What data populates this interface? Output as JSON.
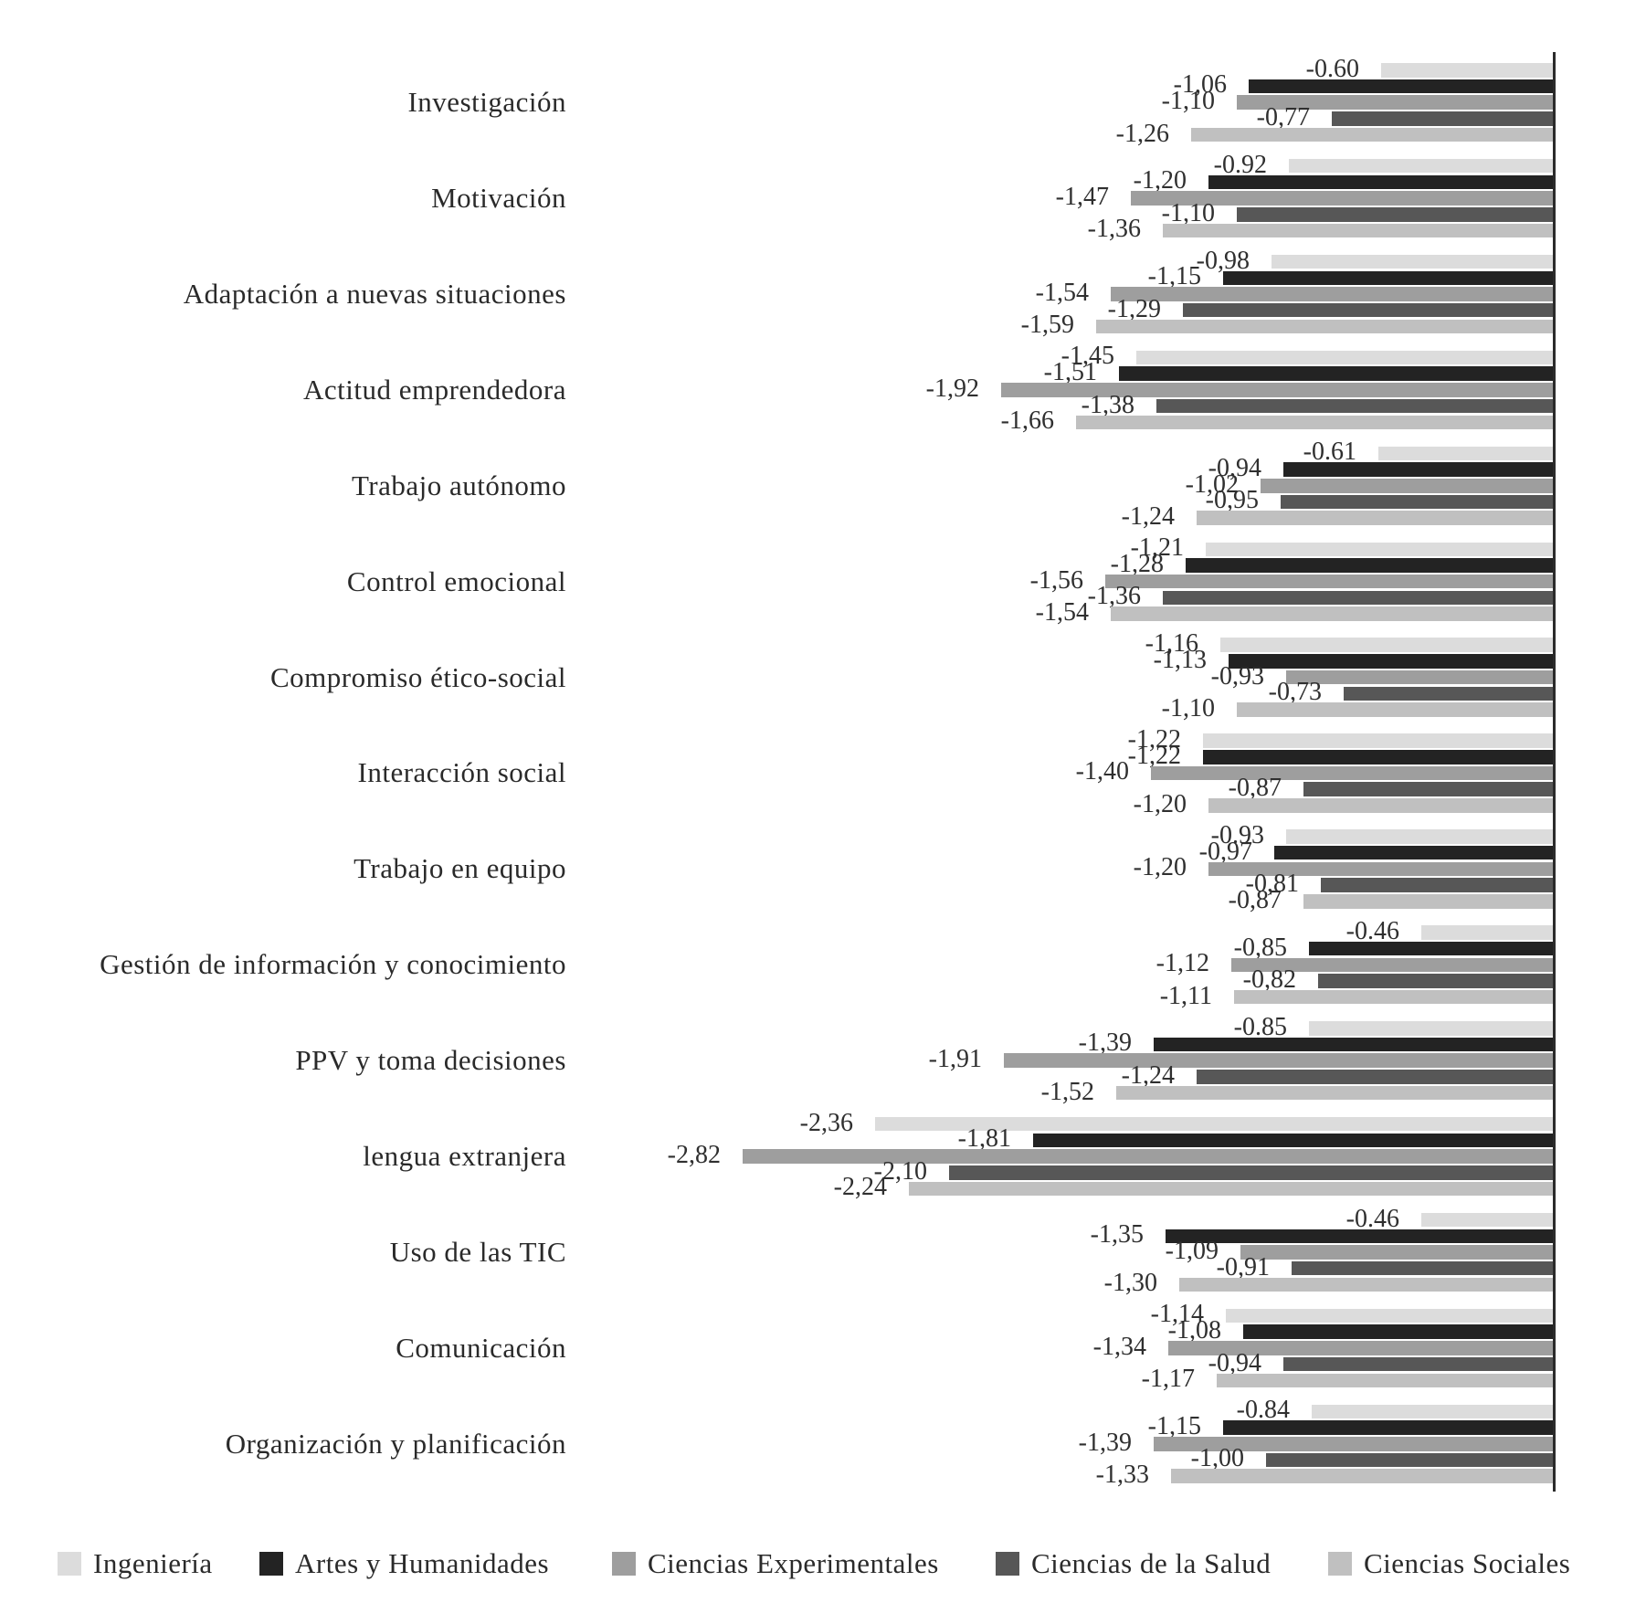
{
  "chart_data": {
    "type": "bar",
    "orientation": "horizontal",
    "title": "",
    "xlabel": "",
    "ylabel": "",
    "xlim": [
      -3,
      0
    ],
    "grid": false,
    "legend_position": "bottom",
    "background": "#ffffff",
    "axis_color": "#2b2b2b",
    "categories": [
      "Investigación",
      "Motivación",
      "Adaptación a nuevas situaciones",
      "Actitud emprendedora",
      "Trabajo autónomo",
      "Control emocional",
      "Compromiso ético-social",
      "Interacción social",
      "Trabajo en equipo",
      "Gestión de información y conocimiento",
      "PPV y toma decisiones",
      "lengua extranjera",
      "Uso de las TIC",
      "Comunicación",
      "Organización y planificación"
    ],
    "series": [
      {
        "name": "Ingeniería",
        "color": "#dcdcdc",
        "values": [
          -0.6,
          -0.92,
          -0.98,
          -1.45,
          -0.61,
          -1.21,
          -1.16,
          -1.22,
          -0.93,
          -0.46,
          -0.85,
          -2.36,
          -0.46,
          -1.14,
          -0.84
        ],
        "labels": [
          "-0.60",
          "-0.92",
          "-0,98",
          "-1,45",
          "-0.61",
          "-1,21",
          "-1,16",
          "-1,22",
          "-0.93",
          "-0.46",
          "-0.85",
          "-2,36",
          "-0.46",
          "-1,14",
          "-0.84"
        ]
      },
      {
        "name": "Artes y Humanidades",
        "color": "#232323",
        "values": [
          -1.06,
          -1.2,
          -1.15,
          -1.51,
          -0.94,
          -1.28,
          -1.13,
          -1.22,
          -0.97,
          -0.85,
          -1.39,
          -1.81,
          -1.35,
          -1.08,
          -1.15
        ],
        "labels": [
          "-1,06",
          "-1,20",
          "-1,15",
          "-1,51",
          "-0,94",
          "-1,28",
          "-1,13",
          "-1,22",
          "-0,97",
          "-0,85",
          "-1,39",
          "-1,81",
          "-1,35",
          "-1,08",
          "-1,15"
        ]
      },
      {
        "name": "Ciencias Experimentales",
        "color": "#9e9e9e",
        "values": [
          -1.1,
          -1.47,
          -1.54,
          -1.92,
          -1.02,
          -1.56,
          -0.93,
          -1.4,
          -1.2,
          -1.12,
          -1.91,
          -2.82,
          -1.09,
          -1.34,
          -1.39
        ],
        "labels": [
          "-1,10",
          "-1,47",
          "-1,54",
          "-1,92",
          "-1,02",
          "-1,56",
          "-0,93",
          "-1,40",
          "-1,20",
          "-1,12",
          "-1,91",
          "-2,82",
          "-1,09",
          "-1,34",
          "-1,39"
        ]
      },
      {
        "name": "Ciencias de la Salud",
        "color": "#575757",
        "values": [
          -0.77,
          -1.1,
          -1.29,
          -1.38,
          -0.95,
          -1.36,
          -0.73,
          -0.87,
          -0.81,
          -0.82,
          -1.24,
          -2.1,
          -0.91,
          -0.94,
          -1.0
        ],
        "labels": [
          "-0,77",
          "-1,10",
          "-1,29",
          "-1,38",
          "-0,95",
          "-1,36",
          "-0,73",
          "-0,87",
          "-0,81",
          "-0,82",
          "-1,24",
          "-2,10",
          "-0,91",
          "-0,94",
          "-1,00"
        ]
      },
      {
        "name": "Ciencias Sociales",
        "color": "#c0c0c0",
        "values": [
          -1.26,
          -1.36,
          -1.59,
          -1.66,
          -1.24,
          -1.54,
          -1.1,
          -1.2,
          -0.87,
          -1.11,
          -1.52,
          -2.24,
          -1.3,
          -1.17,
          -1.33
        ],
        "labels": [
          "-1,26",
          "-1,36",
          "-1,59",
          "-1,66",
          "-1,24",
          "-1,54",
          "-1,10",
          "-1,20",
          "-0,87",
          "-1,11",
          "-1,52",
          "-2,24",
          "-1,30",
          "-1,17",
          "-1,33"
        ]
      }
    ],
    "legend_entries": [
      "Ingeniería",
      "Artes y Humanidades",
      "Ciencias Experimentales",
      "Ciencias de la Salud",
      "Ciencias Sociales"
    ]
  }
}
